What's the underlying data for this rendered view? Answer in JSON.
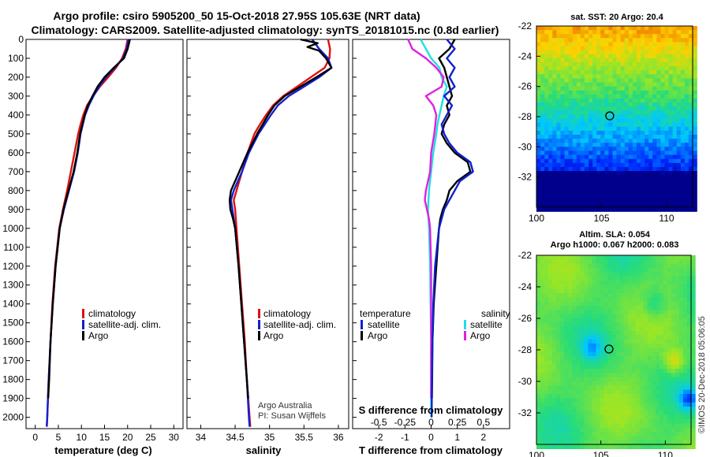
{
  "header": {
    "title_line1": "Argo profile: csiro 5905200_50 15-Oct-2018 27.95S 105.63E (NRT data)",
    "title_line2": "Climatology: CARS2009. Satellite-adjusted climatology: synTS_20181015.nc (0.8d earlier)"
  },
  "colors": {
    "climatology": "#e01010",
    "satellite": "#1020d0",
    "argo": "#000000",
    "argo_salinity_diff": "#e020e0",
    "satellite_salinity_diff": "#20e0e0"
  },
  "chart_data": [
    {
      "type": "line",
      "id": "temperature",
      "xlabel": "temperature (deg C)",
      "ylabel": "",
      "xlim": [
        -2,
        32
      ],
      "ylim": [
        2060,
        0
      ],
      "xticks": [
        "0",
        "5",
        "10",
        "15",
        "20",
        "25",
        "30"
      ],
      "yticks": [
        "0",
        "100",
        "200",
        "300",
        "400",
        "500",
        "600",
        "700",
        "800",
        "900",
        "1000",
        "1100",
        "1200",
        "1300",
        "1400",
        "1500",
        "1600",
        "1700",
        "1800",
        "1900",
        "2000"
      ],
      "legend": [
        "climatology",
        "satellite-adj. clim.",
        "Argo"
      ],
      "series": [
        {
          "name": "climatology",
          "depth": [
            0,
            50,
            100,
            150,
            200,
            250,
            300,
            350,
            400,
            450,
            500,
            600,
            700,
            800,
            900,
            1000,
            1200,
            1400,
            1600,
            1800,
            2000,
            2050
          ],
          "values": [
            20.0,
            19.6,
            18.8,
            17.5,
            15.8,
            14.0,
            12.5,
            11.2,
            10.4,
            9.8,
            9.3,
            8.5,
            7.7,
            6.9,
            6.0,
            5.2,
            4.3,
            3.7,
            3.3,
            2.9,
            2.6,
            2.5
          ]
        },
        {
          "name": "satellite-adj. clim.",
          "depth": [
            0,
            50,
            100,
            150,
            200,
            250,
            300,
            350,
            400,
            450,
            500,
            600,
            700,
            800,
            900,
            1000,
            1200,
            1400,
            1600,
            1800,
            2000,
            2050
          ],
          "values": [
            20.2,
            19.8,
            19.0,
            17.2,
            15.3,
            13.8,
            12.6,
            11.6,
            10.8,
            10.3,
            9.8,
            9.2,
            8.4,
            7.3,
            6.2,
            5.3,
            4.4,
            3.8,
            3.3,
            2.9,
            2.6,
            2.5
          ]
        },
        {
          "name": "Argo",
          "depth": [
            0,
            50,
            100,
            150,
            200,
            250,
            300,
            350,
            400,
            450,
            500,
            600,
            700,
            800,
            900,
            1000,
            1200,
            1400,
            1600,
            1800,
            1900
          ],
          "values": [
            20.5,
            20.0,
            19.2,
            17.0,
            15.0,
            13.5,
            12.4,
            11.4,
            10.7,
            10.2,
            9.7,
            9.1,
            8.3,
            7.2,
            6.1,
            5.3,
            4.4,
            3.8,
            3.3,
            3.0,
            2.8
          ]
        }
      ]
    },
    {
      "type": "line",
      "id": "salinity",
      "xlabel": "salinity",
      "ylabel": "",
      "xlim": [
        33.8,
        36.15
      ],
      "ylim": [
        2060,
        0
      ],
      "xticks": [
        "34",
        "34.5",
        "35",
        "35.5",
        "36"
      ],
      "legend": [
        "climatology",
        "satellite-adj. clim.",
        "Argo"
      ],
      "series": [
        {
          "name": "climatology",
          "depth": [
            0,
            50,
            100,
            150,
            200,
            250,
            300,
            350,
            400,
            450,
            500,
            600,
            700,
            800,
            850,
            900,
            1000,
            1200,
            1400,
            1600,
            1800,
            2000,
            2050
          ],
          "values": [
            35.85,
            35.88,
            35.87,
            35.8,
            35.6,
            35.4,
            35.2,
            35.05,
            34.95,
            34.86,
            34.78,
            34.68,
            34.6,
            34.52,
            34.48,
            34.5,
            34.52,
            34.56,
            34.6,
            34.64,
            34.67,
            34.71,
            34.72
          ]
        },
        {
          "name": "satellite-adj. clim.",
          "depth": [
            0,
            50,
            100,
            150,
            200,
            250,
            300,
            350,
            400,
            450,
            500,
            600,
            700,
            800,
            850,
            900,
            1000,
            1200,
            1400,
            1600,
            1800,
            2000,
            2050
          ],
          "values": [
            35.62,
            35.72,
            35.85,
            35.9,
            35.72,
            35.5,
            35.28,
            35.12,
            35.02,
            34.93,
            34.84,
            34.7,
            34.6,
            34.48,
            34.44,
            34.46,
            34.5,
            34.55,
            34.59,
            34.63,
            34.67,
            34.7,
            34.71
          ]
        },
        {
          "name": "Argo",
          "depth": [
            0,
            20,
            40,
            60,
            100,
            150,
            200,
            250,
            300,
            350,
            400,
            450,
            500,
            600,
            700,
            800,
            850,
            900,
            950,
            1000,
            1200,
            1400,
            1600,
            1800,
            1900
          ],
          "values": [
            35.45,
            35.7,
            35.55,
            35.72,
            35.82,
            35.9,
            35.68,
            35.45,
            35.22,
            35.07,
            34.98,
            34.9,
            34.82,
            34.68,
            34.56,
            34.44,
            34.42,
            34.43,
            34.47,
            34.5,
            34.55,
            34.59,
            34.63,
            34.67,
            34.69
          ]
        }
      ]
    },
    {
      "type": "line",
      "id": "difference",
      "xlabel": "T difference from climatology",
      "xlabel_top": "S difference from climatology",
      "xlim": [
        -3,
        3
      ],
      "ylim": [
        2060,
        0
      ],
      "xticks": [
        "-2",
        "-1",
        "0",
        "1",
        "2"
      ],
      "sticks": [
        "-0.5",
        "-0.25",
        "0",
        "0.25",
        "0.5"
      ],
      "legend_temperature_header": "temperature",
      "legend_salinity_header": "salinity",
      "legend_temperature": [
        "satellite",
        "Argo"
      ],
      "legend_salinity": [
        "satellite",
        "Argo"
      ],
      "series": [
        {
          "name": "T satellite",
          "depth": [
            0,
            50,
            100,
            150,
            200,
            250,
            300,
            350,
            400,
            450,
            500,
            550,
            600,
            650,
            700,
            750,
            800,
            850,
            900,
            950,
            1000,
            1200,
            1400,
            1600,
            1800,
            2000
          ],
          "values": [
            0.6,
            0.9,
            0.6,
            0.9,
            0.7,
            0.9,
            0.5,
            0.8,
            0.6,
            0.4,
            0.5,
            0.7,
            1.0,
            1.5,
            1.6,
            1.1,
            0.9,
            0.7,
            0.5,
            0.4,
            0.3,
            0.15,
            0.08,
            0.05,
            0.03,
            0.02
          ]
        },
        {
          "name": "T Argo",
          "depth": [
            0,
            50,
            100,
            150,
            200,
            250,
            300,
            350,
            400,
            450,
            500,
            550,
            600,
            650,
            700,
            750,
            800,
            850,
            900,
            950,
            1000,
            1200,
            1400,
            1600,
            1800,
            1900
          ],
          "values": [
            0.9,
            0.7,
            0.3,
            0.5,
            0.6,
            0.7,
            0.8,
            0.6,
            0.7,
            0.5,
            0.4,
            0.6,
            0.9,
            1.4,
            1.5,
            1.0,
            0.7,
            0.6,
            0.45,
            0.35,
            0.3,
            0.2,
            0.1,
            0.05,
            0.04,
            0.03
          ]
        },
        {
          "name": "S satellite",
          "depth": [
            0,
            50,
            100,
            150,
            200,
            250,
            300,
            350,
            400,
            450,
            500,
            600,
            700,
            800,
            900,
            1000,
            1200,
            1400,
            1600,
            1800,
            2000
          ],
          "values": [
            -0.1,
            -0.05,
            0.0,
            0.08,
            0.1,
            0.15,
            0.12,
            0.1,
            0.08,
            0.06,
            0.05,
            0.02,
            0.0,
            -0.02,
            -0.03,
            -0.02,
            -0.01,
            -0.005,
            0.0,
            0.0,
            0.0
          ]
        },
        {
          "name": "S Argo",
          "depth": [
            0,
            50,
            100,
            150,
            200,
            250,
            300,
            350,
            400,
            450,
            500,
            600,
            700,
            800,
            850,
            900,
            950,
            1000,
            1200,
            1400,
            1600,
            1800,
            1900
          ],
          "values": [
            -0.22,
            -0.18,
            -0.05,
            0.05,
            0.12,
            0.1,
            -0.05,
            0.02,
            0.05,
            0.04,
            0.03,
            0.0,
            -0.01,
            -0.05,
            -0.06,
            -0.04,
            -0.02,
            -0.01,
            0.0,
            0.0,
            0.0,
            0.0,
            0.0
          ]
        }
      ]
    },
    {
      "type": "heatmap",
      "id": "sst_map",
      "title": "sat. SST: 20 Argo: 20.4",
      "xticks": [
        "100",
        "105",
        "110"
      ],
      "yticks": [
        "-22",
        "-24",
        "-26",
        "-28",
        "-30",
        "-32"
      ],
      "xlim": [
        100,
        112
      ],
      "ylim": [
        -34,
        -22
      ],
      "marker": {
        "lon": 105.63,
        "lat": -27.95
      }
    },
    {
      "type": "heatmap",
      "id": "sla_map",
      "title": "Altim. SLA: 0.054",
      "subtitle": "Argo h1000: 0.067 h2000: 0.083",
      "xticks": [
        "100",
        "105",
        "110"
      ],
      "yticks": [
        "-22",
        "-24",
        "-26",
        "-28",
        "-30",
        "-32"
      ],
      "xlim": [
        100,
        112
      ],
      "ylim": [
        -34,
        -22
      ],
      "marker": {
        "lon": 105.63,
        "lat": -27.95
      }
    }
  ],
  "footer": {
    "credit_line1": "Argo Australia",
    "credit_line2": "PI: Susan Wijffels",
    "stamp": "©IMOS 20-Dec-2018 05:06:05"
  }
}
